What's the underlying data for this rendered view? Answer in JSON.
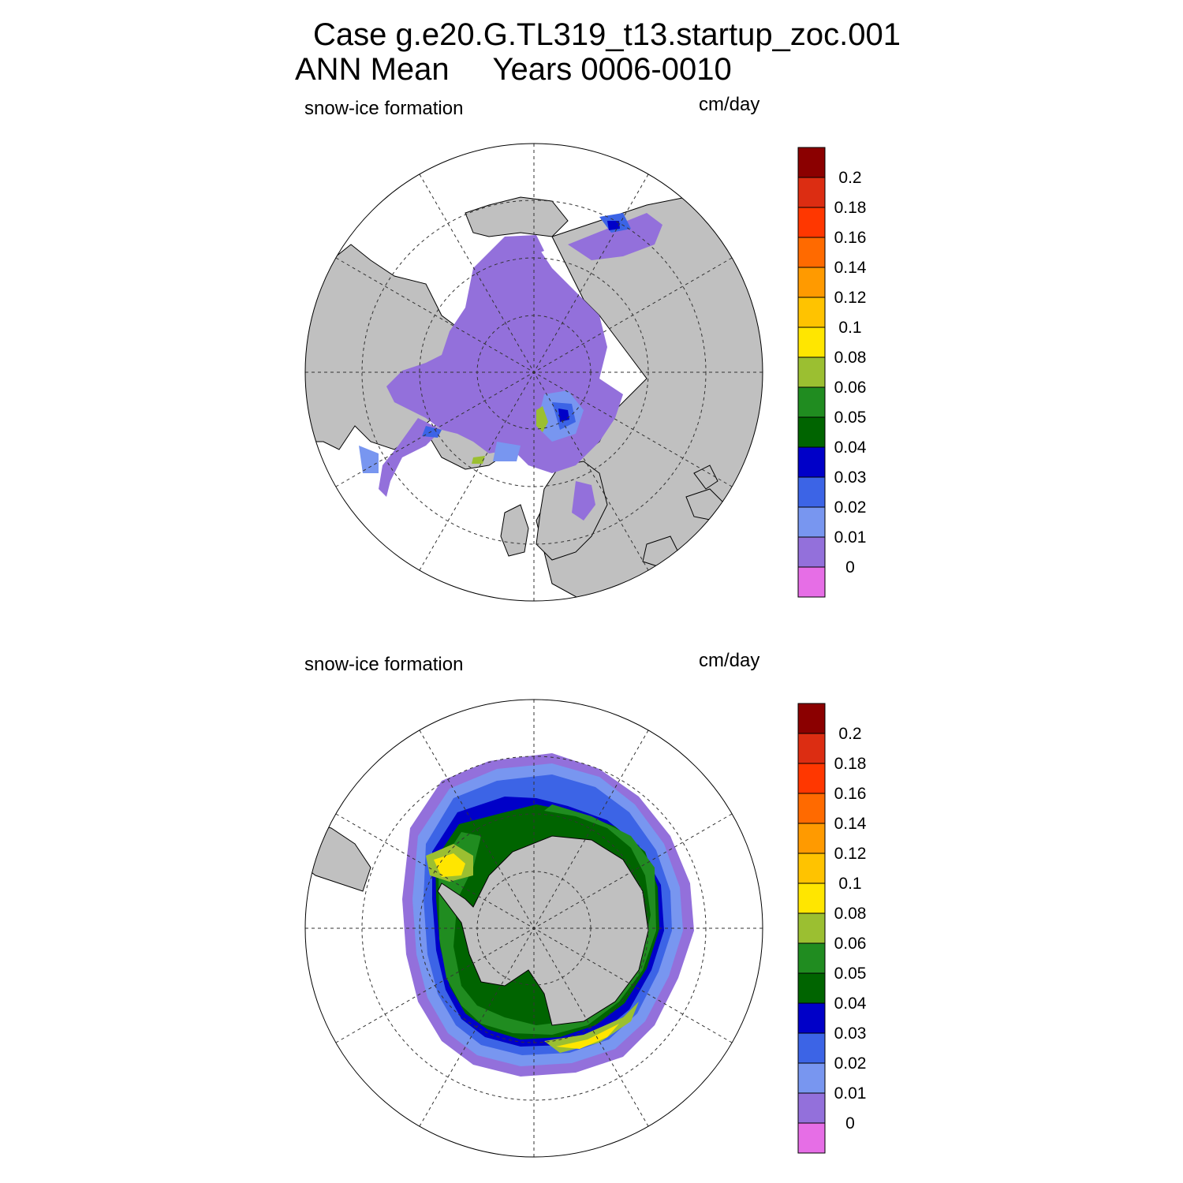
{
  "title": {
    "line1": "Case g.e20.G.TL319_t13.startup_zoc.001",
    "line2": "ANN Mean     Years 0006-0010"
  },
  "panels": [
    {
      "id": "nh",
      "variable_label": "snow-ice formation",
      "units_label": "cm/day"
    },
    {
      "id": "sh",
      "variable_label": "snow-ice formation",
      "units_label": "cm/day"
    }
  ],
  "colorbar": {
    "levels": [
      "0.2",
      "0.18",
      "0.16",
      "0.14",
      "0.12",
      "0.1",
      "0.08",
      "0.06",
      "0.05",
      "0.04",
      "0.03",
      "0.02",
      "0.01",
      "0"
    ],
    "colors": [
      "#8b0000",
      "#dc2d12",
      "#ff3700",
      "#ff6a00",
      "#ff9a00",
      "#ffc300",
      "#ffe600",
      "#9bbf31",
      "#208c20",
      "#006400",
      "#0000c8",
      "#3c64e6",
      "#7896f0",
      "#9370db",
      "#e66ee6"
    ]
  },
  "map_colors": {
    "land": "#c0c0c0",
    "no_data": "#ffffff",
    "graticule": "#333333"
  }
}
